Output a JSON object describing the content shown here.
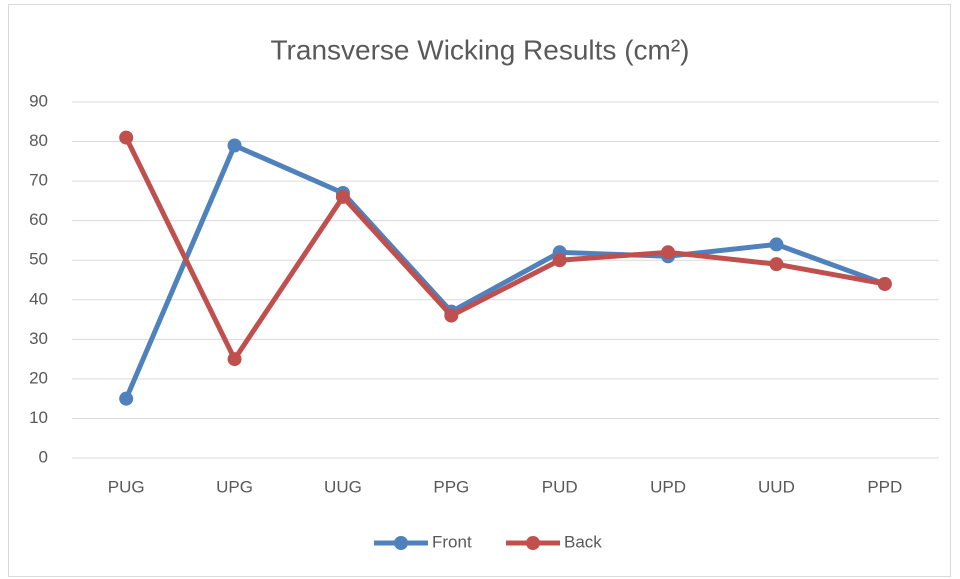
{
  "chart_data": {
    "type": "line",
    "title": "Transverse Wicking Results (cm²)",
    "categories": [
      "PUG",
      "UPG",
      "UUG",
      "PPG",
      "PUD",
      "UPD",
      "UUD",
      "PPD"
    ],
    "series": [
      {
        "name": "Front",
        "color": "#4f81bd",
        "values": [
          15,
          79,
          67,
          37,
          52,
          51,
          54,
          44
        ]
      },
      {
        "name": "Back",
        "color": "#c0504d",
        "values": [
          81,
          25,
          66,
          36,
          50,
          52,
          49,
          44
        ]
      }
    ],
    "ylim": [
      0,
      90
    ],
    "yticks": [
      0,
      10,
      20,
      30,
      40,
      50,
      60,
      70,
      80,
      90
    ],
    "grid": true,
    "legend": "bottom"
  }
}
